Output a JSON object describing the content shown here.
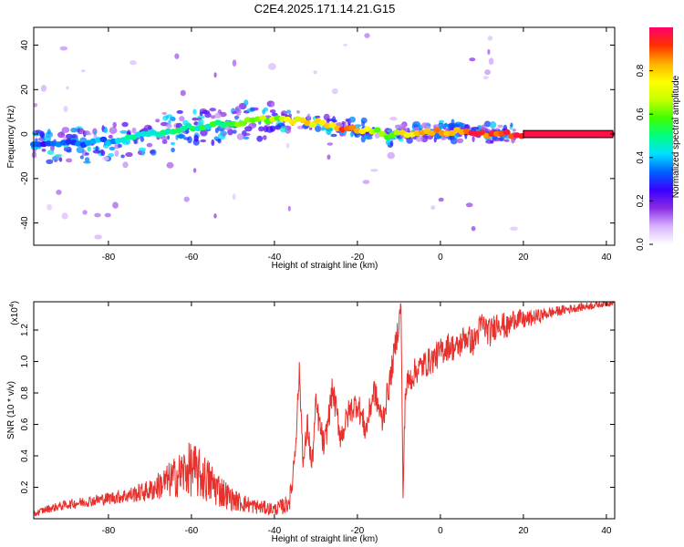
{
  "page": {
    "title": "C2E4.2025.171.14.21.G15"
  },
  "chart_data": [
    {
      "type": "heatmap",
      "xlabel": "Height of straight line (km)",
      "ylabel": "Frequency (Hz)",
      "xlim": [
        -98,
        42
      ],
      "ylim": [
        -50,
        48
      ],
      "x_ticks": [
        -80,
        -60,
        -40,
        -20,
        0,
        20,
        40
      ],
      "y_ticks": [
        -40,
        -20,
        0,
        20,
        40
      ],
      "colorbar": {
        "label": "Normalized spectral amplitude",
        "range": [
          0,
          1
        ],
        "ticks": [
          0.0,
          0.2,
          0.4,
          0.6,
          0.8
        ],
        "colors": [
          "#ffffff",
          "#d8b4ff",
          "#8a2be2",
          "#3a00ff",
          "#0060ff",
          "#00e0ff",
          "#00ff80",
          "#40ff00",
          "#c8ff00",
          "#ffff00",
          "#ffb000",
          "#ff3000",
          "#ff0070"
        ]
      },
      "ridge": {
        "x": [
          -98,
          -90,
          -85,
          -80,
          -75,
          -70,
          -65,
          -60,
          -55,
          -50,
          -45,
          -40,
          -35,
          -30,
          -25,
          -20,
          -15,
          -12,
          -10,
          -5,
          0,
          5,
          10,
          15,
          20,
          30,
          40,
          42
        ],
        "y": [
          -5,
          -4,
          -4,
          -3,
          -2,
          0,
          2,
          3,
          4,
          5,
          6,
          7,
          6,
          5,
          3,
          2,
          1,
          -1,
          0,
          1,
          1,
          1,
          0,
          0,
          0,
          0,
          0,
          0
        ],
        "amp": [
          0.3,
          0.32,
          0.35,
          0.38,
          0.42,
          0.45,
          0.48,
          0.5,
          0.52,
          0.55,
          0.58,
          0.65,
          0.72,
          0.78,
          0.85,
          0.9,
          0.65,
          0.55,
          0.7,
          0.82,
          0.85,
          0.88,
          0.9,
          0.92,
          0.95,
          0.97,
          0.98,
          0.98
        ]
      }
    },
    {
      "type": "line",
      "xlabel": "Height of straight line (km)",
      "ylabel": "SNR (10 * v/v)",
      "yscale_note": "(x10",
      "yscale_exp": "4",
      "xlim": [
        -98,
        42
      ],
      "ylim": [
        0,
        13800
      ],
      "x_ticks": [
        -80,
        -60,
        -40,
        -20,
        0,
        20,
        40
      ],
      "y_ticks": [
        0.2,
        0.4,
        0.6,
        0.8,
        1.0,
        1.2
      ],
      "series": [
        {
          "color": "#e8302c",
          "x": [
            -98,
            -95,
            -90,
            -85,
            -80,
            -75,
            -70,
            -65,
            -60,
            -55,
            -50,
            -45,
            -40,
            -37,
            -36,
            -35,
            -34,
            -33,
            -32,
            -31,
            -30,
            -28,
            -26,
            -24,
            -22,
            -20,
            -18,
            -16,
            -14,
            -12,
            -10,
            -9.5,
            -9,
            -8.5,
            -8,
            -6,
            -4,
            -2,
            0,
            2,
            4,
            6,
            8,
            10,
            12,
            14,
            16,
            18,
            20,
            25,
            30,
            35,
            40,
            42
          ],
          "y": [
            300,
            600,
            900,
            1100,
            1300,
            1500,
            1800,
            2500,
            3200,
            2200,
            1200,
            800,
            600,
            900,
            1500,
            4500,
            9200,
            3500,
            6000,
            3200,
            7200,
            4500,
            8200,
            5200,
            6800,
            7400,
            5600,
            8200,
            6200,
            9000,
            12500,
            13700,
            1400,
            7800,
            8600,
            9400,
            9800,
            10100,
            10600,
            11000,
            10800,
            11600,
            11200,
            12400,
            11800,
            12600,
            12100,
            12800,
            12600,
            13000,
            13300,
            13500,
            13700,
            13800
          ],
          "noise": [
            200,
            250,
            300,
            350,
            400,
            500,
            700,
            1200,
            1800,
            1400,
            700,
            500,
            400,
            600,
            800,
            900,
            800,
            900,
            900,
            900,
            900,
            900,
            900,
            900,
            900,
            900,
            900,
            900,
            900,
            900,
            900,
            300,
            500,
            900,
            900,
            900,
            900,
            900,
            900,
            900,
            900,
            900,
            900,
            900,
            900,
            900,
            800,
            700,
            600,
            400,
            300,
            250,
            200,
            200
          ]
        }
      ]
    }
  ]
}
